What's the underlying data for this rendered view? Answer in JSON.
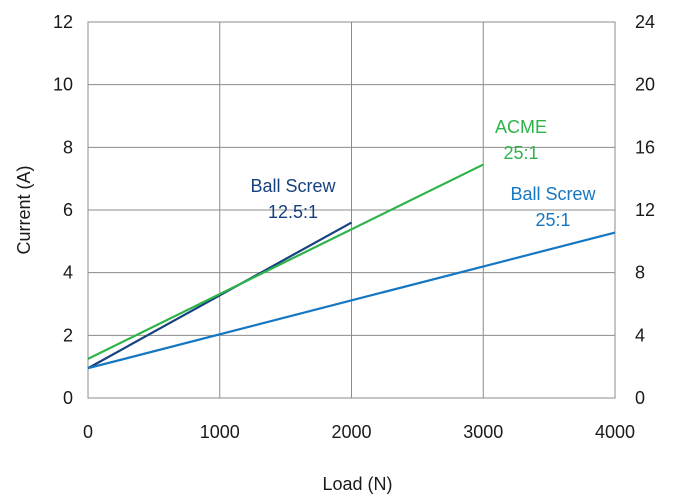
{
  "chart_data": {
    "type": "line",
    "title": "",
    "xlabel": "Load (N)",
    "ylabel": "Current (A)",
    "xlim": [
      0,
      4000
    ],
    "ylim": [
      0,
      12
    ],
    "y2lim": [
      0,
      24
    ],
    "grid": true,
    "x_ticks": [
      "0",
      "1000",
      "2000",
      "3000",
      "4000"
    ],
    "y_ticks": [
      "0",
      "2",
      "4",
      "6",
      "8",
      "10",
      "12"
    ],
    "y2_ticks": [
      "0",
      "4",
      "8",
      "12",
      "16",
      "20",
      "24"
    ],
    "series": [
      {
        "name": "Ball Screw 12.5:1",
        "label_lines": [
          "Ball Screw",
          "12.5:1"
        ],
        "color": "#17427f",
        "x": [
          0,
          2000
        ],
        "y": [
          0.95,
          5.6
        ]
      },
      {
        "name": "ACME 25:1",
        "label_lines": [
          "ACME",
          "25:1"
        ],
        "color": "#2db34a",
        "x": [
          0,
          3000
        ],
        "y": [
          1.25,
          7.45
        ]
      },
      {
        "name": "Ball Screw 25:1",
        "label_lines": [
          "Ball Screw",
          "25:1"
        ],
        "color": "#1577c2",
        "x": [
          0,
          4000
        ],
        "y": [
          0.95,
          5.28
        ]
      }
    ]
  }
}
